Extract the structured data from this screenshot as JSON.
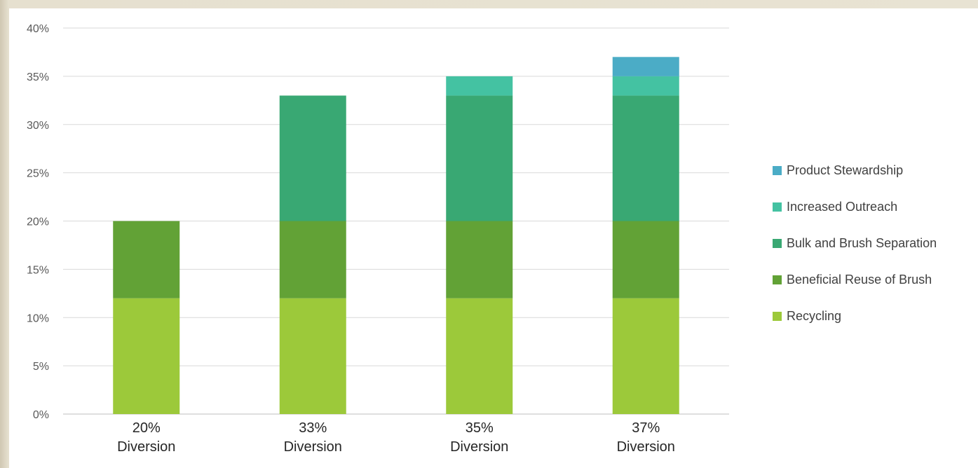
{
  "chart_data": {
    "type": "bar",
    "stacked": true,
    "categories": [
      [
        "20%",
        "Diversion"
      ],
      [
        "33%",
        "Diversion"
      ],
      [
        "35%",
        "Diversion"
      ],
      [
        "37%",
        "Diversion"
      ]
    ],
    "y_ticks": [
      "0%",
      "5%",
      "10%",
      "15%",
      "20%",
      "25%",
      "30%",
      "35%",
      "40%"
    ],
    "ylim": [
      0,
      40
    ],
    "grid": true,
    "legend_position": "right",
    "series": [
      {
        "name": "Recycling",
        "color": "#9cc93a",
        "values": [
          12,
          12,
          12,
          12
        ]
      },
      {
        "name": "Beneficial Reuse of Brush",
        "color": "#62a236",
        "values": [
          8,
          8,
          8,
          8
        ]
      },
      {
        "name": "Bulk and Brush Separation",
        "color": "#39a873",
        "values": [
          0,
          13,
          13,
          13
        ]
      },
      {
        "name": "Increased Outreach",
        "color": "#44c2a2",
        "values": [
          0,
          0,
          2,
          2
        ]
      },
      {
        "name": "Product Stewardship",
        "color": "#4bacc6",
        "values": [
          0,
          0,
          0,
          2
        ]
      }
    ]
  }
}
